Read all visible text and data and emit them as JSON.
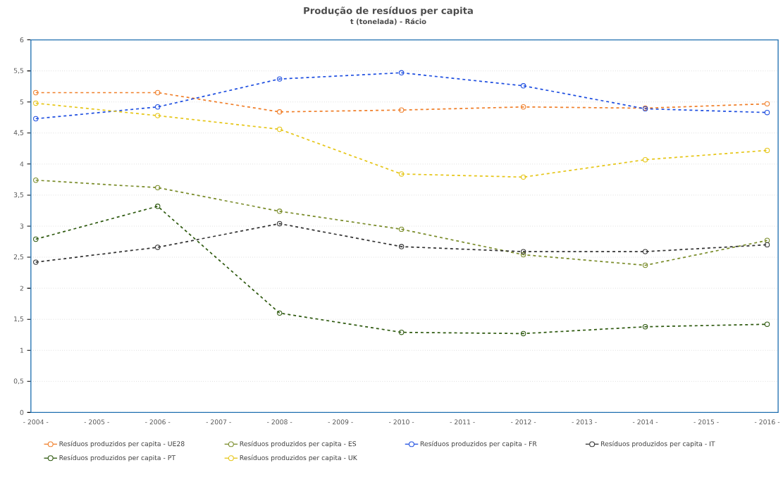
{
  "chart_data": {
    "type": "line",
    "title": "Produção de resíduos per capita",
    "subtitle": "t (tonelada) - Rácio",
    "categories": [
      "- 2004 -",
      "- 2005 -",
      "- 2006 -",
      "- 2007 -",
      "- 2008 -",
      "- 2009 -",
      "- 2010 -",
      "- 2011 -",
      "- 2012 -",
      "- 2013 -",
      "- 2014 -",
      "- 2015 -",
      "- 2016 -"
    ],
    "series": [
      {
        "name": "Resíduos produzidos per capita - UE28",
        "color": "#f07f2a",
        "values": [
          5.15,
          null,
          5.15,
          null,
          4.84,
          null,
          4.87,
          null,
          4.92,
          null,
          4.9,
          null,
          4.97
        ]
      },
      {
        "name": "Resíduos produzidos per capita - ES",
        "color": "#7a8c2a",
        "values": [
          3.74,
          null,
          3.62,
          null,
          3.24,
          null,
          2.95,
          null,
          2.54,
          null,
          2.37,
          null,
          2.77
        ]
      },
      {
        "name": "Resíduos produzidos per capita - FR",
        "color": "#1f4fe0",
        "values": [
          4.73,
          null,
          4.92,
          null,
          5.37,
          null,
          5.47,
          null,
          5.26,
          null,
          4.89,
          null,
          4.83
        ]
      },
      {
        "name": "Resíduos produzidos per capita - IT",
        "color": "#333333",
        "values": [
          2.42,
          null,
          2.66,
          null,
          3.04,
          null,
          2.67,
          null,
          2.59,
          null,
          2.59,
          null,
          2.7
        ]
      },
      {
        "name": "Resíduos produzidos per capita - PT",
        "color": "#2f5a10",
        "values": [
          2.79,
          null,
          3.32,
          null,
          1.6,
          null,
          1.29,
          null,
          1.27,
          null,
          1.38,
          null,
          1.42
        ]
      },
      {
        "name": "Resíduos produzidos per capita - UK",
        "color": "#e6c619",
        "values": [
          4.98,
          null,
          4.78,
          null,
          4.56,
          null,
          3.84,
          null,
          3.79,
          null,
          4.07,
          null,
          4.22
        ]
      }
    ],
    "ylim": [
      0,
      6
    ],
    "yticks": [
      0,
      {
        "value": 0.5,
        "label": "0,5"
      },
      1,
      {
        "value": 1.5,
        "label": "1,5"
      },
      2,
      {
        "value": 2.5,
        "label": "2,5"
      },
      3,
      {
        "value": 3.5,
        "label": "3,5"
      },
      4,
      {
        "value": 4.5,
        "label": "4,5"
      },
      5,
      {
        "value": 5.5,
        "label": "5,5"
      },
      6
    ],
    "grid": "y",
    "legend": "bottom",
    "marker": "circle",
    "line_style": "dashed"
  }
}
